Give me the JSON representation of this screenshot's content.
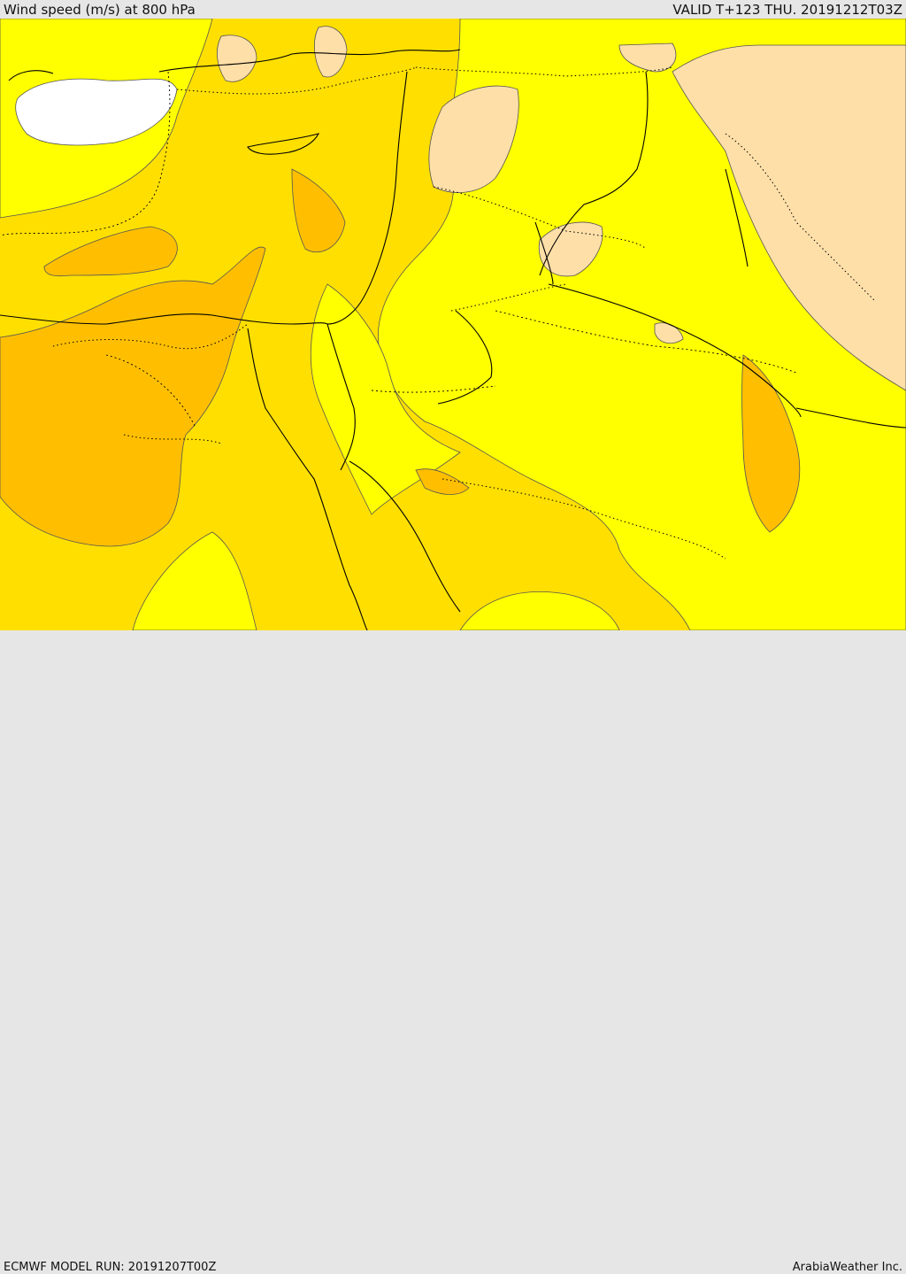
{
  "header": {
    "title": "Wind speed (m/s) at 800 hPa",
    "valid": "VALID T+123 THU. 20191212T03Z"
  },
  "footer": {
    "model_run": "ECMWF MODEL RUN: 20191207T00Z",
    "credit": "ArabiaWeather Inc."
  },
  "map": {
    "colors": {
      "band_0_5": "#ffffff",
      "band_5_10": "#ffdfa8",
      "band_10_15": "#ffff00",
      "band_15_20": "#ffdf00",
      "band_20_25": "#ffbf00",
      "band_25_30": "#ffae00",
      "contour": "#555555",
      "coastline": "#000000"
    }
  }
}
